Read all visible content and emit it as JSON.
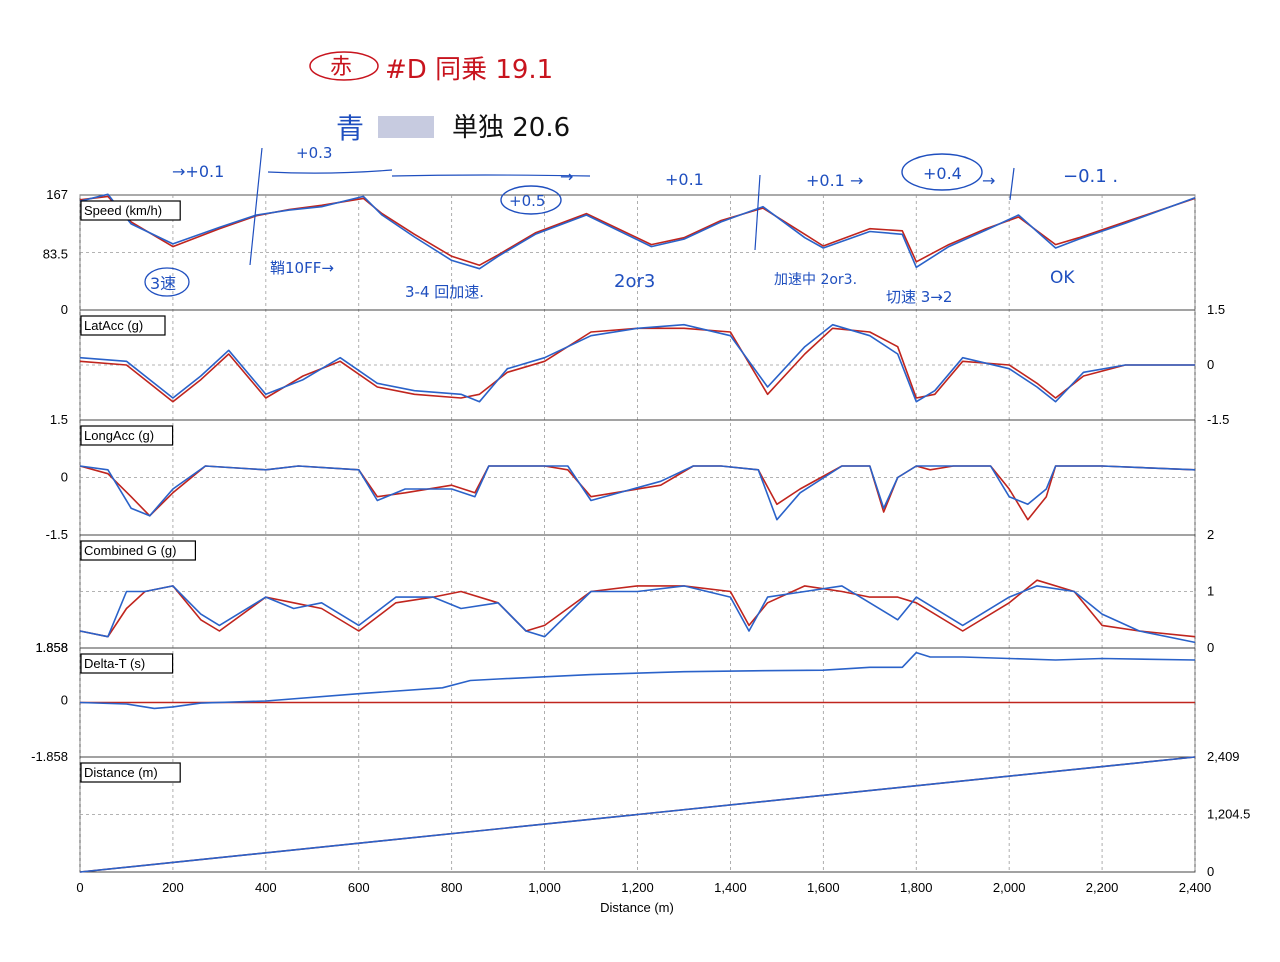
{
  "chart_data": {
    "type": "line",
    "xlabel": "Distance (m)",
    "x_ticks": [
      "0",
      "200",
      "400",
      "600",
      "800",
      "1,000",
      "1,200",
      "1,400",
      "1,600",
      "1,800",
      "2,000",
      "2,200",
      "2,400"
    ],
    "xlim": [
      0,
      2400
    ],
    "grid": true,
    "colors": {
      "red_run": "#c0251e",
      "blue_run": "#2a62c9",
      "grid": "#9a9a9a"
    },
    "panels": [
      {
        "label": "Speed (km/h)",
        "ylim": [
          0,
          167
        ],
        "left_ticks": [
          "167",
          "83.5",
          "0"
        ],
        "right_ticks": [],
        "series": [
          {
            "color": "red",
            "x": [
              0,
              60,
              110,
              200,
              300,
              380,
              450,
              520,
              610,
              650,
              720,
              800,
              860,
              900,
              980,
              1090,
              1230,
              1300,
              1380,
              1470,
              1560,
              1600,
              1700,
              1770,
              1800,
              1870,
              1950,
              2020,
              2100,
              2150,
              2250,
              2400
            ],
            "y": [
              160,
              165,
              128,
              92,
              118,
              137,
              146,
              152,
              162,
              140,
              110,
              78,
              65,
              80,
              112,
              140,
              95,
              105,
              130,
              148,
              110,
              93,
              118,
              115,
              70,
              95,
              118,
              135,
              95,
              105,
              128,
              162
            ]
          },
          {
            "color": "blue",
            "x": [
              0,
              60,
              110,
              200,
              300,
              380,
              450,
              520,
              610,
              650,
              720,
              800,
              860,
              900,
              980,
              1090,
              1230,
              1300,
              1380,
              1470,
              1560,
              1600,
              1700,
              1770,
              1800,
              1870,
              1950,
              2020,
              2100,
              2150,
              2250,
              2400
            ],
            "y": [
              158,
              168,
              125,
              96,
              120,
              138,
              145,
              150,
              165,
              138,
              106,
              72,
              60,
              78,
              110,
              138,
              92,
              103,
              128,
              150,
              105,
              90,
              114,
              110,
              62,
              92,
              116,
              138,
              90,
              103,
              126,
              163
            ]
          }
        ]
      },
      {
        "label": "LatAcc (g)",
        "ylim": [
          -1.5,
          1.5
        ],
        "left_ticks": [
          "1.5"
        ],
        "right_ticks": [
          "1.5",
          "0",
          "-1.5"
        ],
        "series": [
          {
            "color": "red",
            "x": [
              0,
              100,
              200,
              260,
              320,
              400,
              480,
              560,
              640,
              720,
              820,
              860,
              920,
              1000,
              1100,
              1200,
              1300,
              1400,
              1480,
              1560,
              1620,
              1700,
              1760,
              1800,
              1840,
              1900,
              2000,
              2060,
              2100,
              2160,
              2250,
              2400
            ],
            "y": [
              0.1,
              0,
              -1.0,
              -0.4,
              0.3,
              -0.9,
              -0.3,
              0.1,
              -0.6,
              -0.8,
              -0.9,
              -0.8,
              -0.2,
              0.1,
              0.9,
              1.0,
              1.0,
              0.9,
              -0.8,
              0.3,
              1.0,
              0.9,
              0.5,
              -0.9,
              -0.8,
              0.1,
              0,
              -0.5,
              -0.9,
              -0.3,
              0,
              0
            ]
          },
          {
            "color": "blue",
            "x": [
              0,
              100,
              200,
              260,
              320,
              400,
              480,
              560,
              640,
              720,
              820,
              860,
              920,
              1000,
              1100,
              1200,
              1300,
              1400,
              1480,
              1560,
              1620,
              1700,
              1760,
              1800,
              1840,
              1900,
              2000,
              2060,
              2100,
              2160,
              2250,
              2400
            ],
            "y": [
              0.2,
              0.1,
              -0.9,
              -0.3,
              0.4,
              -0.8,
              -0.4,
              0.2,
              -0.5,
              -0.7,
              -0.8,
              -1.0,
              -0.1,
              0.2,
              0.8,
              1.0,
              1.1,
              0.8,
              -0.6,
              0.5,
              1.1,
              0.8,
              0.3,
              -1.0,
              -0.7,
              0.2,
              -0.1,
              -0.6,
              -1.0,
              -0.2,
              0,
              0
            ]
          }
        ]
      },
      {
        "label": "LongAcc (g)",
        "ylim": [
          -1.5,
          1.5
        ],
        "left_ticks": [
          "0",
          "-1.5"
        ],
        "right_ticks": [],
        "series": [
          {
            "color": "red",
            "x": [
              0,
              60,
              110,
              150,
              200,
              270,
              400,
              470,
              600,
              640,
              700,
              800,
              850,
              880,
              1000,
              1050,
              1100,
              1250,
              1320,
              1380,
              1460,
              1500,
              1550,
              1640,
              1700,
              1730,
              1760,
              1800,
              1830,
              1880,
              1960,
              2000,
              2040,
              2080,
              2100,
              2200,
              2400
            ],
            "y": [
              0.3,
              0.1,
              -0.5,
              -1.0,
              -0.4,
              0.3,
              0.2,
              0.3,
              0.2,
              -0.5,
              -0.4,
              -0.2,
              -0.4,
              0.3,
              0.3,
              0.2,
              -0.5,
              -0.2,
              0.3,
              0.3,
              0.2,
              -0.7,
              -0.3,
              0.3,
              0.3,
              -0.9,
              0,
              0.3,
              0.2,
              0.3,
              0.3,
              -0.3,
              -1.1,
              -0.5,
              0.3,
              0.3,
              0.2
            ]
          },
          {
            "color": "blue",
            "x": [
              0,
              60,
              110,
              150,
              200,
              270,
              400,
              470,
              600,
              640,
              700,
              800,
              850,
              880,
              1000,
              1050,
              1100,
              1250,
              1320,
              1380,
              1460,
              1500,
              1550,
              1640,
              1700,
              1730,
              1760,
              1800,
              1830,
              1880,
              1960,
              2000,
              2040,
              2080,
              2100,
              2200,
              2400
            ],
            "y": [
              0.3,
              0.2,
              -0.8,
              -1.0,
              -0.3,
              0.3,
              0.2,
              0.3,
              0.2,
              -0.6,
              -0.3,
              -0.3,
              -0.5,
              0.3,
              0.3,
              0.3,
              -0.6,
              -0.1,
              0.3,
              0.3,
              0.2,
              -1.1,
              -0.4,
              0.3,
              0.3,
              -0.8,
              0,
              0.3,
              0.3,
              0.3,
              0.3,
              -0.5,
              -0.7,
              -0.3,
              0.3,
              0.3,
              0.2
            ]
          }
        ]
      },
      {
        "label": "Combined G (g)",
        "ylim": [
          0,
          2
        ],
        "left_ticks": [
          "1.858"
        ],
        "right_ticks": [
          "2",
          "1",
          "0"
        ],
        "series": [
          {
            "color": "red",
            "x": [
              0,
              60,
              100,
              140,
              200,
              260,
              300,
              400,
              460,
              520,
              600,
              680,
              760,
              820,
              900,
              960,
              1000,
              1100,
              1200,
              1300,
              1400,
              1440,
              1480,
              1560,
              1640,
              1700,
              1760,
              1800,
              1900,
              2000,
              2060,
              2140,
              2200,
              2280,
              2400
            ],
            "y": [
              0.3,
              0.2,
              0.7,
              1.0,
              1.1,
              0.5,
              0.3,
              0.9,
              0.8,
              0.7,
              0.3,
              0.8,
              0.9,
              1.0,
              0.8,
              0.3,
              0.4,
              1.0,
              1.1,
              1.1,
              1.0,
              0.4,
              0.8,
              1.1,
              1.0,
              0.9,
              0.9,
              0.8,
              0.3,
              0.8,
              1.2,
              1.0,
              0.4,
              0.3,
              0.2
            ]
          },
          {
            "color": "blue",
            "x": [
              0,
              60,
              100,
              140,
              200,
              260,
              300,
              400,
              460,
              520,
              600,
              680,
              760,
              820,
              900,
              960,
              1000,
              1100,
              1200,
              1300,
              1400,
              1440,
              1480,
              1560,
              1640,
              1700,
              1760,
              1800,
              1900,
              2000,
              2060,
              2140,
              2200,
              2280,
              2400
            ],
            "y": [
              0.3,
              0.2,
              1.0,
              1.0,
              1.1,
              0.6,
              0.4,
              0.9,
              0.7,
              0.8,
              0.4,
              0.9,
              0.9,
              0.7,
              0.8,
              0.3,
              0.2,
              1.0,
              1.0,
              1.1,
              0.9,
              0.3,
              0.9,
              1.0,
              1.1,
              0.8,
              0.5,
              0.9,
              0.4,
              0.9,
              1.1,
              1.0,
              0.6,
              0.3,
              0.1
            ]
          }
        ]
      },
      {
        "label": "Delta-T (s)",
        "ylim": [
          -1.858,
          1.858
        ],
        "left_ticks": [
          "1.858",
          "0",
          "-1.858"
        ],
        "right_ticks": [],
        "series": [
          {
            "color": "red",
            "x": [
              0,
              2400
            ],
            "y": [
              0,
              0
            ]
          },
          {
            "color": "blue",
            "x": [
              0,
              100,
              160,
              200,
              260,
              400,
              600,
              780,
              840,
              900,
              1100,
              1300,
              1450,
              1600,
              1700,
              1770,
              1800,
              1830,
              1900,
              2000,
              2100,
              2200,
              2400
            ],
            "y": [
              0,
              -0.05,
              -0.2,
              -0.15,
              -0.02,
              0.05,
              0.3,
              0.5,
              0.75,
              0.8,
              0.95,
              1.05,
              1.08,
              1.1,
              1.2,
              1.2,
              1.7,
              1.55,
              1.55,
              1.5,
              1.45,
              1.5,
              1.45
            ]
          }
        ]
      },
      {
        "label": "Distance (m)",
        "ylim": [
          0,
          2409
        ],
        "left_ticks": [],
        "right_ticks": [
          "2,409",
          "1,204.5",
          "0"
        ],
        "series": [
          {
            "color": "red",
            "x": [
              0,
              2400
            ],
            "y": [
              0,
              2409
            ]
          },
          {
            "color": "blue",
            "x": [
              0,
              2400
            ],
            "y": [
              0,
              2409
            ]
          }
        ]
      }
    ]
  },
  "annotations": {
    "legend_red_tag": "赤",
    "legend_red_text": "#D 同乗 19.1",
    "legend_blue_tag": "青",
    "legend_blue_text": "単独 20.6",
    "deltas": [
      "→+0.1",
      "+0.3",
      "→",
      "+0.5",
      "+0.1",
      "+0.1 →",
      "+0.4",
      "→",
      "−0.1 ."
    ],
    "notes": [
      "3速",
      "鞘10FF→",
      "3-4 回加速.",
      "2or3",
      "加速中 2or3.",
      "切速 3→2",
      "OK"
    ]
  }
}
